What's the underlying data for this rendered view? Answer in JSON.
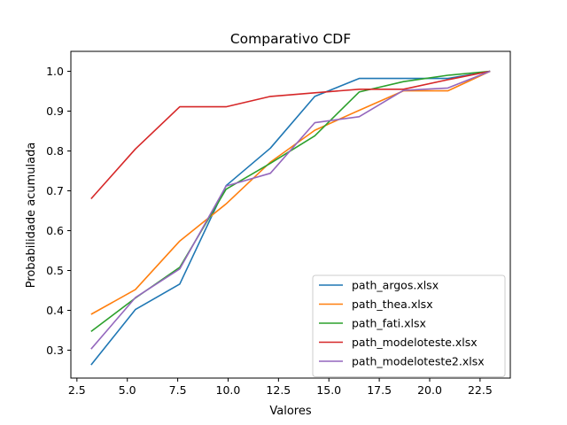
{
  "chart_data": {
    "type": "line",
    "title": "Comparativo CDF",
    "xlabel": "Valores",
    "ylabel": "Probabilidade acumulada",
    "xlim": [
      2.2,
      24.0
    ],
    "ylim": [
      0.23,
      1.05
    ],
    "xticks": [
      2.5,
      5.0,
      7.5,
      10.0,
      12.5,
      15.0,
      17.5,
      20.0,
      22.5
    ],
    "xtick_labels": [
      "2.5",
      "5.0",
      "7.5",
      "10.0",
      "12.5",
      "15.0",
      "17.5",
      "20.0",
      "22.5"
    ],
    "yticks": [
      0.3,
      0.4,
      0.5,
      0.6,
      0.7,
      0.8,
      0.9,
      1.0
    ],
    "ytick_labels": [
      "0.3",
      "0.4",
      "0.5",
      "0.6",
      "0.7",
      "0.8",
      "0.9",
      "1.0"
    ],
    "grid": false,
    "legend_position": "lower-right",
    "series": [
      {
        "name": "path_argos.xlsx",
        "color": "#1f77b4",
        "x": [
          3.2,
          5.4,
          7.6,
          9.9,
          12.1,
          14.3,
          16.5,
          18.7,
          20.9,
          23.0
        ],
        "y": [
          0.263,
          0.402,
          0.466,
          0.713,
          0.807,
          0.937,
          0.982,
          0.982,
          0.982,
          1.0
        ]
      },
      {
        "name": "path_thea.xlsx",
        "color": "#ff7f0e",
        "x": [
          3.2,
          5.4,
          7.6,
          9.9,
          12.1,
          14.3,
          16.5,
          18.7,
          20.9,
          23.0
        ],
        "y": [
          0.39,
          0.452,
          0.574,
          0.667,
          0.772,
          0.852,
          0.902,
          0.951,
          0.951,
          1.0
        ]
      },
      {
        "name": "path_fati.xlsx",
        "color": "#2ca02c",
        "x": [
          3.2,
          5.4,
          7.6,
          9.9,
          12.1,
          14.3,
          16.5,
          18.7,
          20.9,
          23.0
        ],
        "y": [
          0.347,
          0.431,
          0.508,
          0.704,
          0.769,
          0.838,
          0.948,
          0.974,
          0.99,
          1.0
        ]
      },
      {
        "name": "path_modeloteste.xlsx",
        "color": "#d62728",
        "x": [
          3.2,
          5.4,
          7.6,
          9.9,
          12.1,
          14.3,
          16.5,
          18.7,
          20.9,
          23.0
        ],
        "y": [
          0.68,
          0.805,
          0.911,
          0.911,
          0.937,
          0.946,
          0.955,
          0.955,
          0.979,
          1.0
        ]
      },
      {
        "name": "path_modeloteste2.xlsx",
        "color": "#9467bd",
        "x": [
          3.2,
          5.4,
          7.6,
          9.9,
          12.1,
          14.3,
          16.5,
          18.7,
          20.9,
          23.0
        ],
        "y": [
          0.303,
          0.432,
          0.504,
          0.712,
          0.744,
          0.871,
          0.886,
          0.952,
          0.958,
          1.0
        ]
      }
    ]
  }
}
